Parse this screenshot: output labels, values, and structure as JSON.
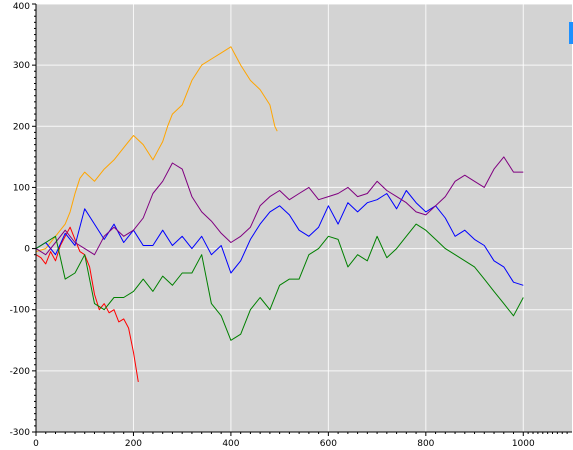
{
  "chart_data": {
    "type": "line",
    "title": "",
    "xlabel": "",
    "ylabel": "",
    "xlim": [
      0,
      1100
    ],
    "ylim": [
      -300,
      400
    ],
    "xticks": [
      0,
      200,
      400,
      600,
      800,
      1000
    ],
    "xtick_labels": [
      "0",
      "200",
      "400",
      "600",
      "800",
      "1000"
    ],
    "yticks": [
      -300,
      -200,
      -100,
      0,
      100,
      200,
      300,
      400
    ],
    "ytick_labels": [
      "-300",
      "-200",
      "-100",
      "0",
      "100",
      "200",
      "300",
      "400"
    ],
    "grid": true,
    "background_color": "#d3d3d3",
    "legend": "none",
    "series": [
      {
        "color": "#ff0000",
        "x": [
          0,
          10,
          20,
          30,
          40,
          50,
          60,
          70,
          80,
          90,
          100,
          110,
          120,
          130,
          140,
          150,
          160,
          170,
          180,
          190,
          200,
          210
        ],
        "y": [
          -10,
          -15,
          -25,
          -5,
          -20,
          5,
          20,
          35,
          15,
          -5,
          -10,
          -30,
          -75,
          -100,
          -90,
          -105,
          -100,
          -120,
          -115,
          -130,
          -170,
          -218
        ]
      },
      {
        "color": "#ffa500",
        "x": [
          0,
          20,
          40,
          60,
          70,
          80,
          90,
          100,
          120,
          140,
          160,
          180,
          200,
          220,
          240,
          250,
          260,
          270,
          280,
          300,
          320,
          340,
          360,
          380,
          400,
          410,
          420,
          440,
          460,
          480,
          490,
          495
        ],
        "y": [
          -5,
          0,
          20,
          40,
          60,
          90,
          115,
          125,
          110,
          130,
          145,
          165,
          185,
          170,
          145,
          160,
          175,
          200,
          220,
          235,
          275,
          300,
          310,
          320,
          330,
          315,
          300,
          275,
          260,
          235,
          200,
          192
        ]
      },
      {
        "color": "#0000ff",
        "x": [
          0,
          20,
          40,
          60,
          80,
          100,
          120,
          140,
          160,
          180,
          200,
          220,
          240,
          260,
          280,
          300,
          320,
          340,
          360,
          380,
          400,
          420,
          440,
          460,
          480,
          500,
          520,
          540,
          560,
          580,
          600,
          620,
          640,
          660,
          680,
          700,
          720,
          740,
          760,
          780,
          800,
          820,
          840,
          860,
          880,
          900,
          920,
          940,
          960,
          980,
          1000
        ],
        "y": [
          0,
          10,
          -10,
          25,
          5,
          65,
          40,
          15,
          40,
          10,
          30,
          5,
          5,
          30,
          5,
          20,
          0,
          20,
          -10,
          5,
          -40,
          -20,
          15,
          40,
          60,
          70,
          55,
          30,
          20,
          35,
          70,
          40,
          75,
          60,
          75,
          80,
          90,
          65,
          95,
          75,
          60,
          70,
          50,
          20,
          30,
          15,
          5,
          -20,
          -30,
          -55,
          -60
        ]
      },
      {
        "color": "#800080",
        "x": [
          0,
          20,
          40,
          60,
          80,
          100,
          120,
          140,
          160,
          180,
          200,
          220,
          240,
          260,
          280,
          300,
          320,
          340,
          360,
          380,
          400,
          420,
          440,
          460,
          480,
          500,
          520,
          540,
          560,
          580,
          600,
          620,
          640,
          660,
          680,
          700,
          720,
          740,
          760,
          780,
          800,
          820,
          840,
          860,
          880,
          900,
          920,
          940,
          960,
          980,
          1000
        ],
        "y": [
          0,
          -10,
          10,
          30,
          10,
          0,
          -10,
          20,
          35,
          20,
          30,
          50,
          90,
          110,
          140,
          130,
          85,
          60,
          45,
          25,
          10,
          20,
          35,
          70,
          85,
          95,
          80,
          90,
          100,
          80,
          85,
          90,
          100,
          85,
          90,
          110,
          95,
          85,
          75,
          60,
          55,
          70,
          85,
          110,
          120,
          110,
          100,
          130,
          150,
          125,
          125
        ]
      },
      {
        "color": "#008000",
        "x": [
          0,
          20,
          40,
          60,
          80,
          100,
          120,
          140,
          160,
          180,
          200,
          220,
          240,
          260,
          280,
          300,
          320,
          340,
          360,
          380,
          400,
          420,
          440,
          460,
          480,
          500,
          520,
          540,
          560,
          580,
          600,
          620,
          640,
          660,
          680,
          700,
          720,
          740,
          760,
          780,
          800,
          820,
          840,
          860,
          880,
          900,
          920,
          940,
          960,
          980,
          1000
        ],
        "y": [
          0,
          10,
          20,
          -50,
          -40,
          -10,
          -90,
          -100,
          -80,
          -80,
          -70,
          -50,
          -70,
          -45,
          -60,
          -40,
          -40,
          -10,
          -90,
          -110,
          -150,
          -140,
          -100,
          -80,
          -100,
          -60,
          -50,
          -50,
          -10,
          0,
          20,
          15,
          -30,
          -10,
          -20,
          20,
          -15,
          0,
          20,
          40,
          30,
          15,
          0,
          -10,
          -20,
          -30,
          -50,
          -70,
          -90,
          -110,
          -80
        ]
      }
    ]
  }
}
